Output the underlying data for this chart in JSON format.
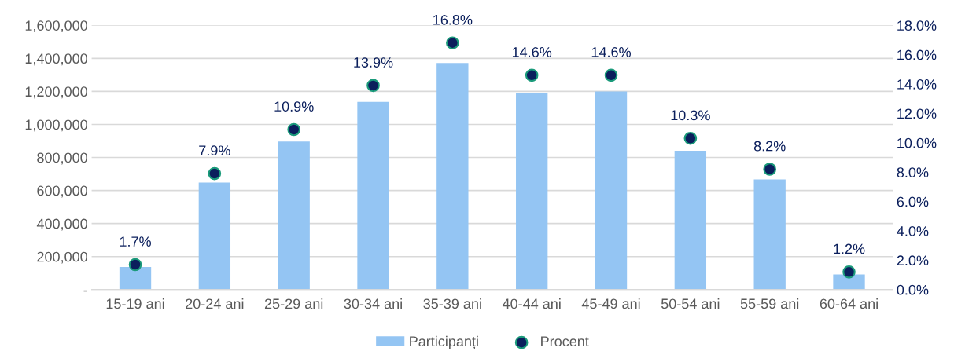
{
  "chart_data": {
    "type": "bar",
    "categories": [
      "15-19 ani",
      "20-24 ani",
      "25-29 ani",
      "30-34 ani",
      "35-39 ani",
      "40-44 ani",
      "45-49 ani",
      "50-54 ani",
      "55-59 ani",
      "60-64 ani"
    ],
    "series": [
      {
        "name": "Participanți",
        "color": "#94c5f3",
        "values": [
          137000,
          648000,
          897000,
          1136000,
          1372000,
          1192000,
          1200000,
          840000,
          667000,
          92000
        ]
      },
      {
        "name": "Procent",
        "type": "scatter",
        "axis": "y2",
        "color": "#0b1f5c",
        "values": [
          1.7,
          7.9,
          10.9,
          13.9,
          16.8,
          14.6,
          14.6,
          10.3,
          8.2,
          1.2
        ],
        "value_labels": [
          "1.7%",
          "7.9%",
          "10.9%",
          "13.9%",
          "16.8%",
          "14.6%",
          "14.6%",
          "10.3%",
          "8.2%",
          "1.2%"
        ]
      }
    ],
    "ylim": [
      0,
      1600000
    ],
    "yticks": [
      {
        "value": 0,
        "label": "-"
      },
      {
        "value": 200000,
        "label": "200,000"
      },
      {
        "value": 400000,
        "label": "400,000"
      },
      {
        "value": 600000,
        "label": "600,000"
      },
      {
        "value": 800000,
        "label": "800,000"
      },
      {
        "value": 1000000,
        "label": "1,000,000"
      },
      {
        "value": 1200000,
        "label": "1,200,000"
      },
      {
        "value": 1400000,
        "label": "1,400,000"
      },
      {
        "value": 1600000,
        "label": "1,600,000"
      }
    ],
    "y2lim": [
      0,
      18
    ],
    "y2ticks": [
      {
        "value": 0,
        "label": "0.0%"
      },
      {
        "value": 2,
        "label": "2.0%"
      },
      {
        "value": 4,
        "label": "4.0%"
      },
      {
        "value": 6,
        "label": "6.0%"
      },
      {
        "value": 8,
        "label": "8.0%"
      },
      {
        "value": 10,
        "label": "10.0%"
      },
      {
        "value": 12,
        "label": "12.0%"
      },
      {
        "value": 14,
        "label": "14.0%"
      },
      {
        "value": 16,
        "label": "16.0%"
      },
      {
        "value": 18,
        "label": "18.0%"
      }
    ],
    "grid": "y",
    "legend": "bottom",
    "marker": "circle"
  }
}
